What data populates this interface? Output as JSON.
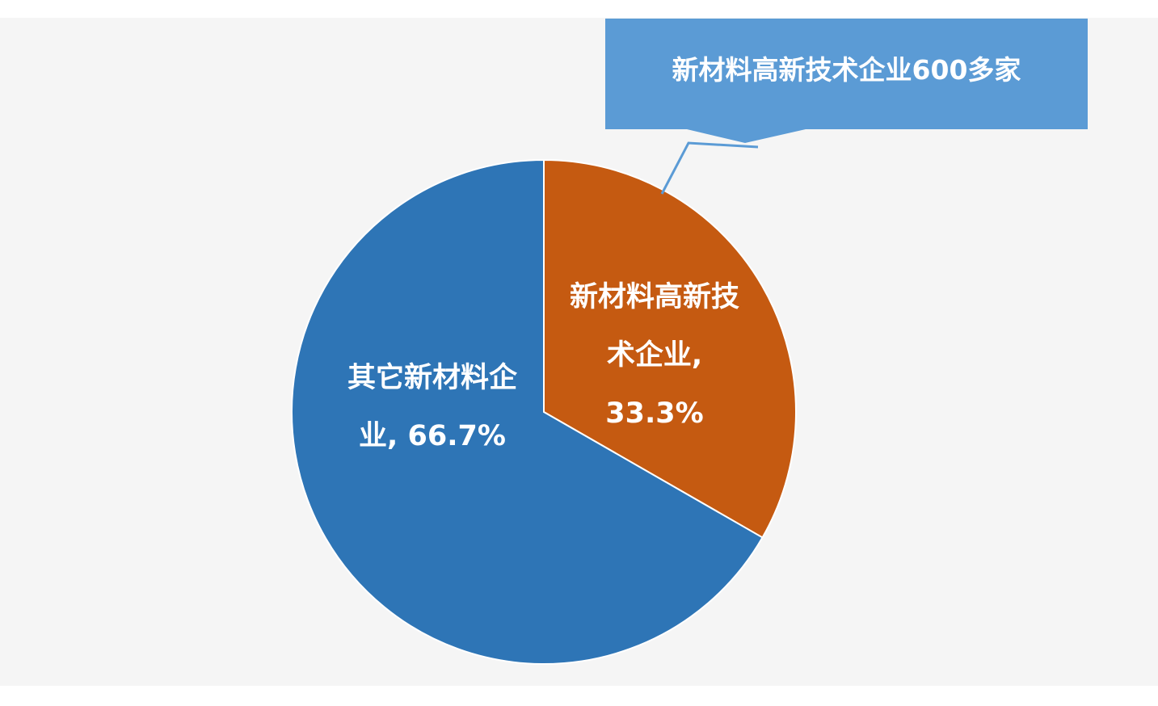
{
  "chart_data": {
    "type": "pie",
    "title": "",
    "slices": [
      {
        "label_lines": [
          "新材料高新技",
          "术企业,",
          "33.3%"
        ],
        "category": "新材料高新技术企业",
        "value": 33.3,
        "color": "#C55A11"
      },
      {
        "label_lines": [
          "其它新材料企",
          "业, 66.7%"
        ],
        "category": "其它新材料企业",
        "value": 66.7,
        "color": "#2E75B6"
      }
    ],
    "start_angle_deg": 0,
    "direction": "clockwise",
    "annotation": {
      "text": "新材料高新技术企业600多家",
      "color": "#5B9BD5"
    }
  }
}
